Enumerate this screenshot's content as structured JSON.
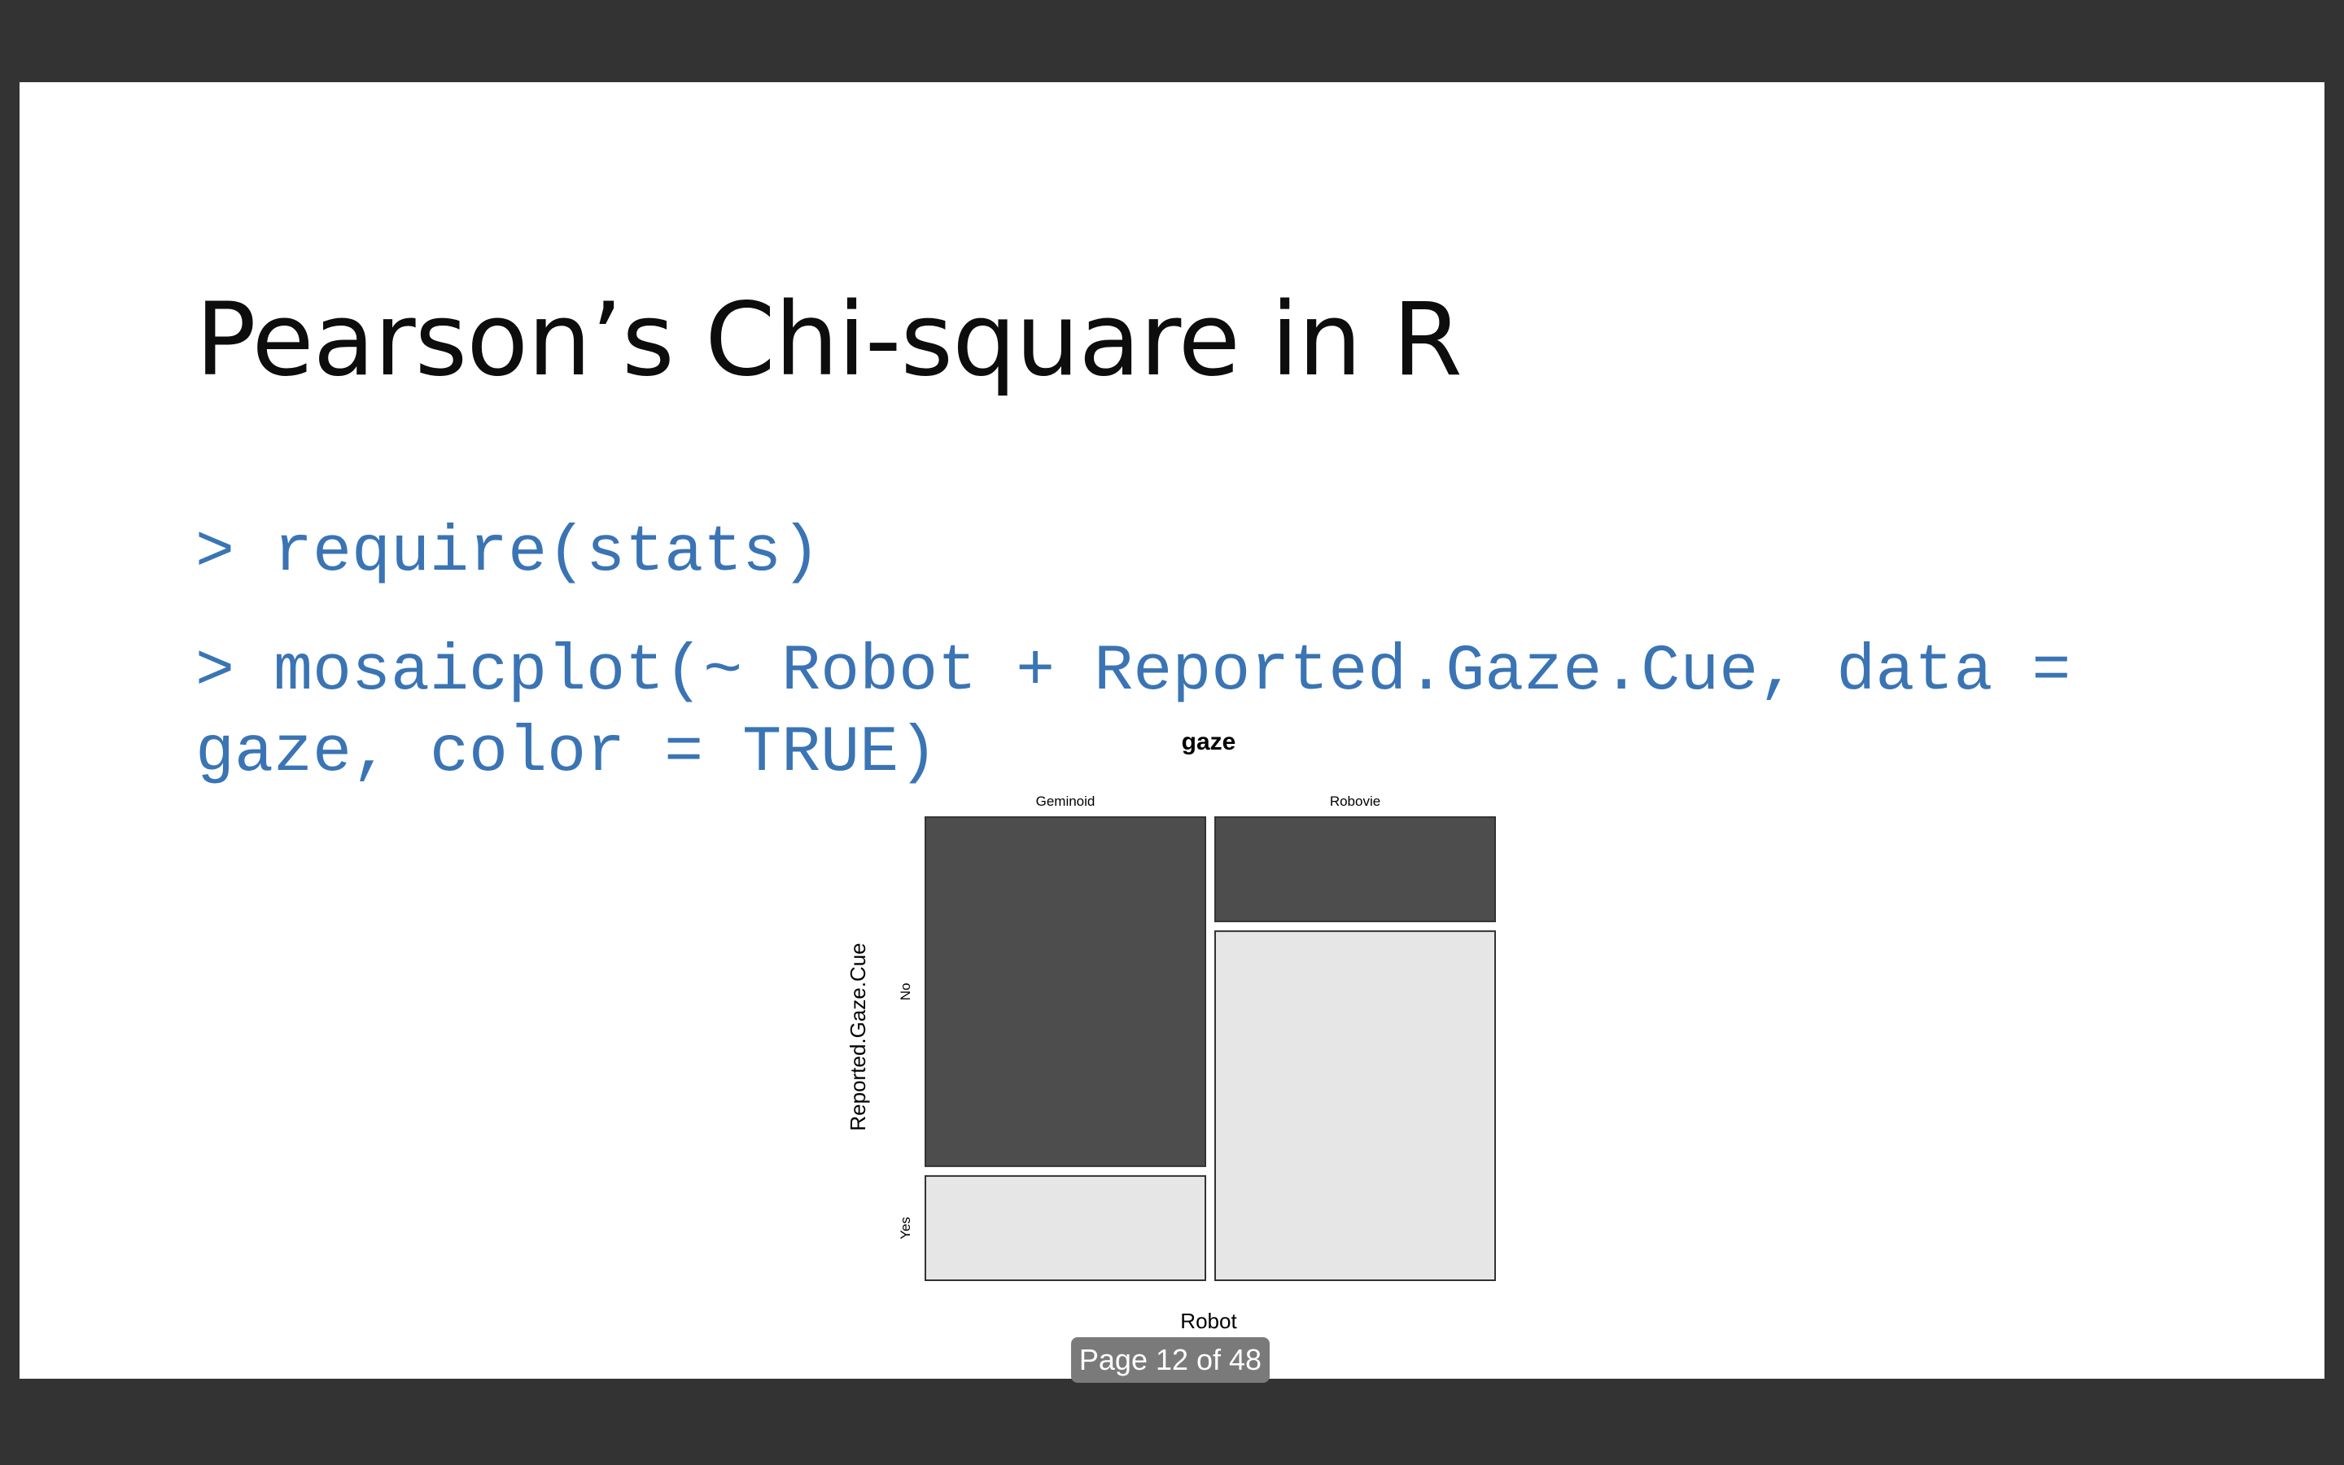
{
  "slide": {
    "title": "Pearson’s Chi-square in R",
    "code_lines": [
      "> require(stats)",
      "> mosaicplot(~ Robot + Reported.Gaze.Cue, data =",
      "gaze, color = TRUE)"
    ],
    "slide_number": "12"
  },
  "viewer": {
    "page_indicator": "Page 12 of 48"
  },
  "colors": {
    "code": "#3a74b4",
    "mosaic_dark": "#4d4d4d",
    "mosaic_light": "#e6e6e6"
  },
  "chart_data": {
    "type": "mosaic",
    "title": "gaze",
    "xlabel": "Robot",
    "ylabel": "Reported.Gaze.Cue",
    "categories": [
      "Geminoid",
      "Robovie"
    ],
    "column_share": [
      0.5,
      0.5
    ],
    "levels": [
      "No",
      "Yes"
    ],
    "series": [
      {
        "name": "No",
        "values": [
          0.77,
          0.23
        ],
        "color": "#4d4d4d"
      },
      {
        "name": "Yes",
        "values": [
          0.23,
          0.77
        ],
        "color": "#e6e6e6"
      }
    ]
  }
}
